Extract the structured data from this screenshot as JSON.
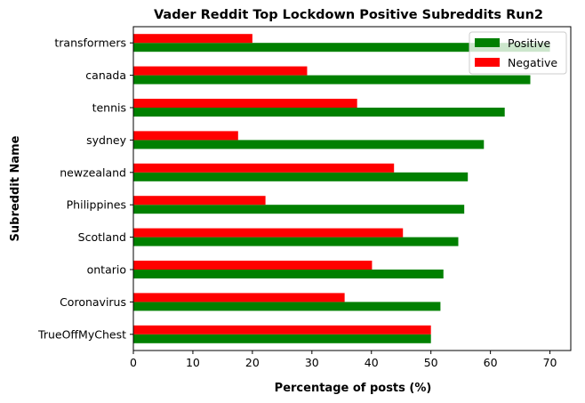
{
  "chart_data": {
    "type": "bar",
    "orientation": "horizontal",
    "title": "Vader Reddit Top Lockdown Positive Subreddits Run2",
    "xlabel": "Percentage of posts (%)",
    "ylabel": "Subreddit Name",
    "xlim": [
      0,
      73.5
    ],
    "xticks": [
      0,
      10,
      20,
      30,
      40,
      50,
      60,
      70
    ],
    "grid": false,
    "legend_position": "top-right",
    "categories": [
      "TrueOffMyChest",
      "Coronavirus",
      "ontario",
      "Scotland",
      "Philippines",
      "newzealand",
      "sydney",
      "tennis",
      "canada",
      "transformers"
    ],
    "series": [
      {
        "name": "Positive",
        "color": "#008000",
        "values": [
          50.0,
          51.6,
          52.1,
          54.6,
          55.6,
          56.2,
          58.9,
          62.4,
          66.7,
          70.0
        ]
      },
      {
        "name": "Negative",
        "color": "#ff0000",
        "values": [
          50.0,
          35.5,
          40.1,
          45.3,
          22.2,
          43.8,
          17.6,
          37.6,
          29.2,
          20.0
        ]
      }
    ]
  }
}
